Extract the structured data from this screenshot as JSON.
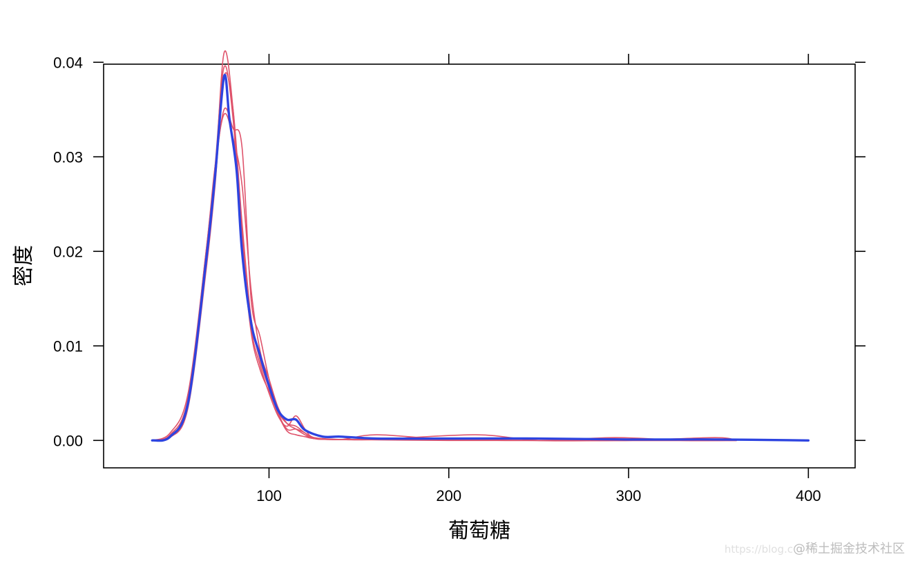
{
  "chart_data": {
    "type": "line",
    "title": "",
    "xlabel": "葡萄糖",
    "ylabel": "密度",
    "xlim": [
      8,
      426
    ],
    "ylim": [
      -0.0029,
      0.0398
    ],
    "x_ticks": [
      100,
      200,
      300,
      400
    ],
    "x_tick_labels": [
      "100",
      "200",
      "300",
      "400"
    ],
    "y_ticks": [
      0.0,
      0.01,
      0.02,
      0.03,
      0.04
    ],
    "y_tick_labels": [
      "0.00",
      "0.01",
      "0.02",
      "0.03",
      "0.04"
    ],
    "grid": false,
    "legend": "none",
    "colors": {
      "observed": "#2D44E0",
      "imputed": "#DF536B"
    },
    "series": [
      {
        "role": "observed",
        "color": "#2D44E0",
        "x": [
          35,
          45,
          55,
          65,
          70,
          75,
          78,
          82,
          85,
          90,
          95,
          100,
          105,
          110,
          115,
          120,
          130,
          140,
          160,
          200,
          250,
          300,
          350,
          400
        ],
        "y": [
          0.0,
          0.0004,
          0.004,
          0.019,
          0.028,
          0.0385,
          0.034,
          0.0285,
          0.02,
          0.0125,
          0.009,
          0.0058,
          0.0032,
          0.0022,
          0.0022,
          0.0011,
          0.0004,
          0.0004,
          0.0002,
          0.0002,
          0.0002,
          0.0001,
          0.0001,
          0.0
        ]
      },
      {
        "role": "imputed",
        "color": "#DF536B",
        "x": [
          35,
          45,
          55,
          65,
          70,
          75,
          80,
          85,
          90,
          95,
          100,
          105,
          110,
          115,
          120,
          125,
          140,
          160,
          200,
          250,
          300,
          360
        ],
        "y": [
          0.0,
          0.0005,
          0.004,
          0.019,
          0.028,
          0.041,
          0.035,
          0.022,
          0.012,
          0.008,
          0.005,
          0.0026,
          0.0015,
          0.0026,
          0.0012,
          0.0003,
          0.0001,
          0.0006,
          0.0001,
          0.0,
          0.0,
          0.0
        ]
      },
      {
        "role": "imputed",
        "color": "#DF536B",
        "x": [
          35,
          45,
          55,
          65,
          70,
          75,
          80,
          85,
          90,
          95,
          100,
          105,
          110,
          115,
          120,
          125,
          140,
          160,
          215,
          250,
          300,
          360
        ],
        "y": [
          0.0,
          0.0006,
          0.0045,
          0.02,
          0.029,
          0.0395,
          0.034,
          0.021,
          0.0115,
          0.0075,
          0.0052,
          0.003,
          0.0018,
          0.0015,
          0.0008,
          0.0003,
          0.0001,
          0.0001,
          0.0006,
          0.0,
          0.0,
          0.0
        ]
      },
      {
        "role": "imputed",
        "color": "#DF536B",
        "x": [
          35,
          45,
          55,
          65,
          70,
          75,
          80,
          85,
          90,
          95,
          100,
          105,
          110,
          115,
          120,
          125,
          140,
          180,
          250,
          293,
          330,
          360
        ],
        "y": [
          0.0,
          0.0003,
          0.0035,
          0.018,
          0.027,
          0.0385,
          0.035,
          0.023,
          0.013,
          0.0085,
          0.0055,
          0.0028,
          0.001,
          0.0006,
          0.0004,
          0.0002,
          0.0001,
          0.0001,
          0.0,
          0.0003,
          0.0,
          0.0
        ]
      },
      {
        "role": "imputed",
        "color": "#DF536B",
        "x": [
          35,
          45,
          55,
          65,
          70,
          75,
          80,
          85,
          90,
          95,
          100,
          105,
          110,
          115,
          120,
          125,
          140,
          200,
          250,
          300,
          348,
          360
        ],
        "y": [
          0.0,
          0.0004,
          0.004,
          0.0195,
          0.0285,
          0.035,
          0.033,
          0.031,
          0.015,
          0.011,
          0.0065,
          0.003,
          0.0012,
          0.0012,
          0.0008,
          0.0002,
          0.0001,
          0.0001,
          0.0,
          0.0,
          0.0003,
          0.0
        ]
      },
      {
        "role": "imputed",
        "color": "#DF536B",
        "x": [
          35,
          45,
          55,
          65,
          70,
          75,
          80,
          85,
          90,
          95,
          100,
          105,
          110,
          115,
          120,
          125,
          140,
          200,
          250,
          300,
          360
        ],
        "y": [
          0.0,
          0.0008,
          0.005,
          0.02,
          0.029,
          0.0345,
          0.032,
          0.027,
          0.016,
          0.0095,
          0.0065,
          0.0035,
          0.0018,
          0.0012,
          0.0006,
          0.0002,
          0.0001,
          0.0,
          0.0,
          0.0,
          0.0
        ]
      }
    ]
  },
  "watermark": {
    "url": "https://blog.c",
    "text": "@稀土掘金技术社区"
  }
}
